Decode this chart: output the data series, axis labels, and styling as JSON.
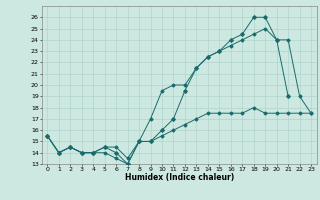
{
  "xlabel": "Humidex (Indice chaleur)",
  "bg_color": "#cce8e0",
  "grid_color": "#b0d4cc",
  "line_color": "#1a6b6b",
  "xlim": [
    -0.5,
    23.5
  ],
  "ylim": [
    13,
    27
  ],
  "xticks": [
    0,
    1,
    2,
    3,
    4,
    5,
    6,
    7,
    8,
    9,
    10,
    11,
    12,
    13,
    14,
    15,
    16,
    17,
    18,
    19,
    20,
    21,
    22,
    23
  ],
  "yticks": [
    13,
    14,
    15,
    16,
    17,
    18,
    19,
    20,
    21,
    22,
    23,
    24,
    25,
    26
  ],
  "line1_x": [
    0,
    1,
    2,
    3,
    4,
    5,
    6,
    7,
    8,
    9,
    10,
    11,
    12,
    13,
    14,
    15,
    16,
    17,
    18,
    19,
    20,
    21,
    22,
    23
  ],
  "line1_y": [
    15.5,
    14.0,
    14.5,
    14.0,
    14.0,
    14.0,
    13.5,
    13.0,
    15.0,
    17.0,
    19.5,
    20.0,
    20.0,
    21.5,
    22.5,
    23.0,
    23.5,
    24.0,
    24.5,
    25.0,
    24.0,
    24.0,
    19.0,
    17.5
  ],
  "line2_x": [
    0,
    1,
    2,
    3,
    4,
    5,
    6,
    7,
    8,
    9,
    10,
    11,
    12,
    13,
    14,
    15,
    16,
    17,
    18,
    19,
    20,
    21
  ],
  "line2_y": [
    15.5,
    14.0,
    14.5,
    14.0,
    14.0,
    14.5,
    14.0,
    13.0,
    15.0,
    15.0,
    16.0,
    17.0,
    19.5,
    21.5,
    22.5,
    23.0,
    24.0,
    24.5,
    26.0,
    26.0,
    24.0,
    19.0
  ],
  "line3_x": [
    0,
    1,
    2,
    3,
    4,
    5,
    6,
    7,
    8,
    9,
    10,
    11,
    12,
    13,
    14,
    15,
    16,
    17,
    18,
    19,
    20,
    21,
    22,
    23
  ],
  "line3_y": [
    15.5,
    14.0,
    14.5,
    14.0,
    14.0,
    14.5,
    14.5,
    13.5,
    15.0,
    15.0,
    15.5,
    16.0,
    16.5,
    17.0,
    17.5,
    17.5,
    17.5,
    17.5,
    18.0,
    17.5,
    17.5,
    17.5,
    17.5,
    17.5
  ]
}
